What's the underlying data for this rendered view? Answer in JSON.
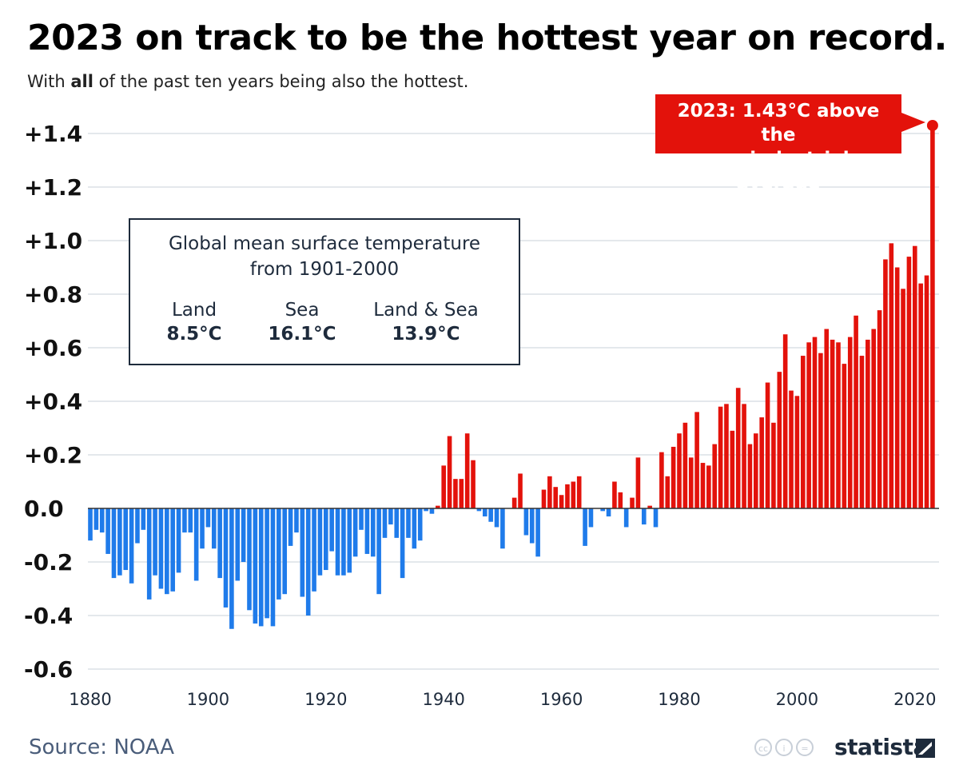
{
  "title": "2023 on track to be the hottest year on record.",
  "subtitle": {
    "pre": "With ",
    "bold": "all",
    "post": " of the past ten years being also the hottest."
  },
  "info_box": {
    "title_line1": "Global mean surface temperature",
    "title_line2": "from 1901-2000",
    "columns": [
      {
        "label": "Land",
        "value": "8.5°C"
      },
      {
        "label": "Sea",
        "value": "16.1°C"
      },
      {
        "label": "Land & Sea",
        "value": "13.9°C"
      }
    ]
  },
  "callout": {
    "line1": "2023: 1.43°C above the",
    "line2": "pre-industrial average"
  },
  "source": "Source: NOAA",
  "brand": "statista",
  "colors": {
    "positive": "#e3120b",
    "negative": "#1f7bea",
    "title": "#000000",
    "box_text": "#1e2b3c",
    "grid": "#c9d1da"
  },
  "chart_data": {
    "type": "bar",
    "title": "2023 on track to be the hottest year on record.",
    "xlabel": "",
    "ylabel": "",
    "ylim": [
      -0.6,
      1.45
    ],
    "xlim": [
      1880,
      2023
    ],
    "y_ticks": [
      -0.6,
      -0.4,
      -0.2,
      0.0,
      0.2,
      0.4,
      0.6,
      0.8,
      1.0,
      1.2,
      1.4
    ],
    "y_tick_labels": [
      "-0.6",
      "-0.4",
      "-0.2",
      "0.0",
      "+0.2",
      "+0.4",
      "+0.6",
      "+0.8",
      "+1.0",
      "+1.2",
      "+1.4"
    ],
    "x_ticks": [
      1880,
      1900,
      1920,
      1940,
      1960,
      1980,
      2000,
      2020
    ],
    "grid": true,
    "x": [
      1880,
      1881,
      1882,
      1883,
      1884,
      1885,
      1886,
      1887,
      1888,
      1889,
      1890,
      1891,
      1892,
      1893,
      1894,
      1895,
      1896,
      1897,
      1898,
      1899,
      1900,
      1901,
      1902,
      1903,
      1904,
      1905,
      1906,
      1907,
      1908,
      1909,
      1910,
      1911,
      1912,
      1913,
      1914,
      1915,
      1916,
      1917,
      1918,
      1919,
      1920,
      1921,
      1922,
      1923,
      1924,
      1925,
      1926,
      1927,
      1928,
      1929,
      1930,
      1931,
      1932,
      1933,
      1934,
      1935,
      1936,
      1937,
      1938,
      1939,
      1940,
      1941,
      1942,
      1943,
      1944,
      1945,
      1946,
      1947,
      1948,
      1949,
      1950,
      1951,
      1952,
      1953,
      1954,
      1955,
      1956,
      1957,
      1958,
      1959,
      1960,
      1961,
      1962,
      1963,
      1964,
      1965,
      1966,
      1967,
      1968,
      1969,
      1970,
      1971,
      1972,
      1973,
      1974,
      1975,
      1976,
      1977,
      1978,
      1979,
      1980,
      1981,
      1982,
      1983,
      1984,
      1985,
      1986,
      1987,
      1988,
      1989,
      1990,
      1991,
      1992,
      1993,
      1994,
      1995,
      1996,
      1997,
      1998,
      1999,
      2000,
      2001,
      2002,
      2003,
      2004,
      2005,
      2006,
      2007,
      2008,
      2009,
      2010,
      2011,
      2012,
      2013,
      2014,
      2015,
      2016,
      2017,
      2018,
      2019,
      2020,
      2021,
      2022,
      2023
    ],
    "values": [
      -0.12,
      -0.08,
      -0.09,
      -0.17,
      -0.26,
      -0.25,
      -0.23,
      -0.28,
      -0.13,
      -0.08,
      -0.34,
      -0.25,
      -0.3,
      -0.32,
      -0.31,
      -0.24,
      -0.09,
      -0.09,
      -0.27,
      -0.15,
      -0.07,
      -0.15,
      -0.26,
      -0.37,
      -0.45,
      -0.27,
      -0.2,
      -0.38,
      -0.43,
      -0.44,
      -0.41,
      -0.44,
      -0.34,
      -0.32,
      -0.14,
      -0.09,
      -0.33,
      -0.4,
      -0.31,
      -0.25,
      -0.23,
      -0.16,
      -0.25,
      -0.25,
      -0.24,
      -0.18,
      -0.08,
      -0.17,
      -0.18,
      -0.32,
      -0.11,
      -0.06,
      -0.11,
      -0.26,
      -0.11,
      -0.15,
      -0.12,
      -0.01,
      -0.02,
      0.01,
      0.16,
      0.27,
      0.11,
      0.11,
      0.28,
      0.18,
      -0.01,
      -0.03,
      -0.05,
      -0.07,
      -0.15,
      0.0,
      0.04,
      0.13,
      -0.1,
      -0.13,
      -0.18,
      0.07,
      0.12,
      0.08,
      0.05,
      0.09,
      0.1,
      0.12,
      -0.14,
      -0.07,
      0.0,
      -0.01,
      -0.03,
      0.1,
      0.06,
      -0.07,
      0.04,
      0.19,
      -0.06,
      0.01,
      -0.07,
      0.21,
      0.12,
      0.23,
      0.28,
      0.32,
      0.19,
      0.36,
      0.17,
      0.16,
      0.24,
      0.38,
      0.39,
      0.29,
      0.45,
      0.39,
      0.24,
      0.28,
      0.34,
      0.47,
      0.32,
      0.51,
      0.65,
      0.44,
      0.42,
      0.57,
      0.62,
      0.64,
      0.58,
      0.67,
      0.63,
      0.62,
      0.54,
      0.64,
      0.72,
      0.57,
      0.63,
      0.67,
      0.74,
      0.93,
      0.99,
      0.9,
      0.82,
      0.94,
      0.98,
      0.84,
      0.87,
      1.43
    ]
  }
}
